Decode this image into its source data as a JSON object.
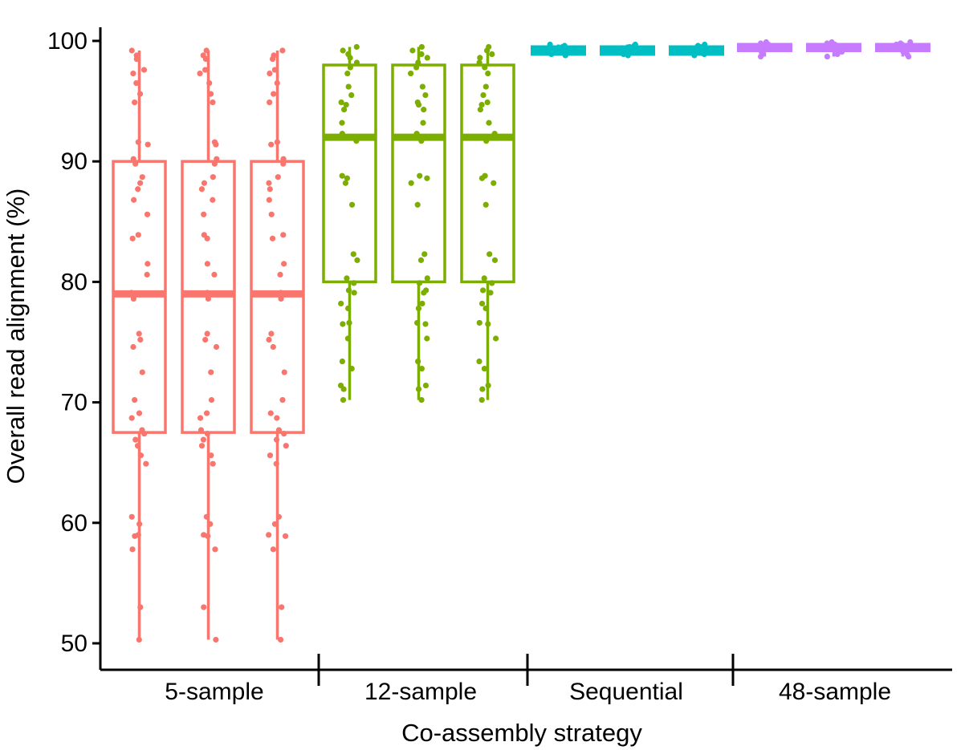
{
  "chart_data": {
    "type": "boxplot",
    "xlabel": "Co-assembly strategy",
    "ylabel": "Overall read alignment (%)",
    "ylim": [
      50,
      100
    ],
    "yticks": [
      50,
      60,
      70,
      80,
      90,
      100
    ],
    "grid": false,
    "legend": "none",
    "categories": [
      "5-sample",
      "12-sample",
      "Sequential",
      "48-sample"
    ],
    "groups": [
      {
        "name": "5-sample",
        "color": "#F8766D",
        "boxes": [
          {
            "min": 50.3,
            "q1": 67.5,
            "median": 79.0,
            "q3": 90.0,
            "max": 99.2
          },
          {
            "min": 50.3,
            "q1": 67.5,
            "median": 79.0,
            "q3": 90.0,
            "max": 99.2
          },
          {
            "min": 50.3,
            "q1": 67.5,
            "median": 79.0,
            "q3": 90.0,
            "max": 99.2
          }
        ],
        "points": [
          50.3,
          53.0,
          57.8,
          58.9,
          59.0,
          59.9,
          60.5,
          64.9,
          65.6,
          66.4,
          66.9,
          67.4,
          67.7,
          68.7,
          69.1,
          70.2,
          72.5,
          74.6,
          75.2,
          75.7,
          78.6,
          79.1,
          80.6,
          81.5,
          83.6,
          83.9,
          85.6,
          86.8,
          87.7,
          88.2,
          88.7,
          89.8,
          90.2,
          91.4,
          91.6,
          94.9,
          95.6,
          96.5,
          97.3,
          97.6,
          98.5,
          98.8,
          99.2
        ]
      },
      {
        "name": "12-sample",
        "color": "#7CAE00",
        "boxes": [
          {
            "min": 70.2,
            "q1": 80.0,
            "median": 92.0,
            "q3": 98.0,
            "max": 99.5
          },
          {
            "min": 70.2,
            "q1": 80.0,
            "median": 92.0,
            "q3": 98.0,
            "max": 99.5
          },
          {
            "min": 70.2,
            "q1": 80.0,
            "median": 92.0,
            "q3": 98.0,
            "max": 99.5
          }
        ],
        "points": [
          70.2,
          71.1,
          71.4,
          72.8,
          73.4,
          75.3,
          76.5,
          76.6,
          77.8,
          78.2,
          79.1,
          79.3,
          79.9,
          80.3,
          81.8,
          82.3,
          86.4,
          88.2,
          88.6,
          88.8,
          91.7,
          92.3,
          93.2,
          94.3,
          94.7,
          94.9,
          95.5,
          96.2,
          97.3,
          97.8,
          98.2,
          98.6,
          98.9,
          99.2,
          99.5
        ]
      },
      {
        "name": "Sequential",
        "color": "#00BFC4",
        "boxes": [
          {
            "min": 98.8,
            "q1": 98.9,
            "median": 99.2,
            "q3": 99.5,
            "max": 99.7
          },
          {
            "min": 98.8,
            "q1": 98.9,
            "median": 99.2,
            "q3": 99.5,
            "max": 99.7
          },
          {
            "min": 98.8,
            "q1": 98.9,
            "median": 99.2,
            "q3": 99.5,
            "max": 99.7
          }
        ],
        "points": [
          98.8,
          98.9,
          99.0,
          99.1,
          99.2,
          99.3,
          99.4,
          99.5,
          99.6,
          99.7
        ]
      },
      {
        "name": "48-sample",
        "color": "#C77CFF",
        "boxes": [
          {
            "min": 98.7,
            "q1": 99.2,
            "median": 99.5,
            "q3": 99.7,
            "max": 99.9
          },
          {
            "min": 98.7,
            "q1": 99.2,
            "median": 99.5,
            "q3": 99.7,
            "max": 99.9
          },
          {
            "min": 98.7,
            "q1": 99.2,
            "median": 99.5,
            "q3": 99.7,
            "max": 99.9
          }
        ],
        "points": [
          98.7,
          98.9,
          99.1,
          99.3,
          99.4,
          99.5,
          99.6,
          99.7,
          99.8,
          99.9
        ]
      }
    ]
  }
}
